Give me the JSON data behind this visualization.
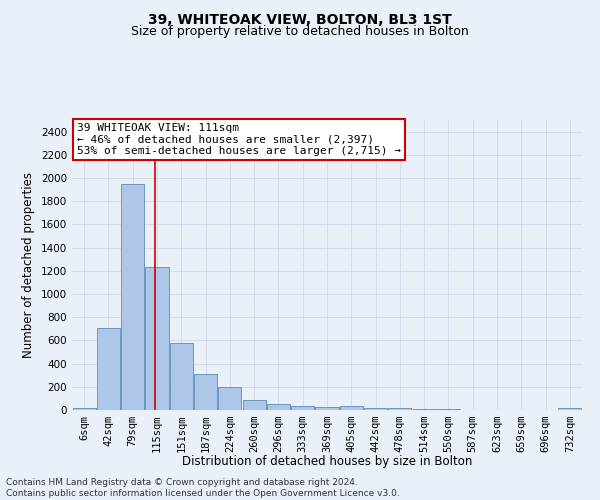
{
  "title": "39, WHITEOAK VIEW, BOLTON, BL3 1ST",
  "subtitle": "Size of property relative to detached houses in Bolton",
  "xlabel": "Distribution of detached houses by size in Bolton",
  "ylabel": "Number of detached properties",
  "categories": [
    "6sqm",
    "42sqm",
    "79sqm",
    "115sqm",
    "151sqm",
    "187sqm",
    "224sqm",
    "260sqm",
    "296sqm",
    "333sqm",
    "369sqm",
    "405sqm",
    "442sqm",
    "478sqm",
    "514sqm",
    "550sqm",
    "587sqm",
    "623sqm",
    "659sqm",
    "696sqm",
    "732sqm"
  ],
  "values": [
    20,
    710,
    1950,
    1230,
    580,
    310,
    200,
    85,
    50,
    35,
    30,
    35,
    20,
    15,
    10,
    5,
    3,
    2,
    2,
    2,
    15
  ],
  "bar_color": "#aec6e8",
  "bar_edge_color": "#5b8db8",
  "grid_color": "#d0d8e8",
  "background_color": "#eaf0f8",
  "annotation_text": "39 WHITEOAK VIEW: 111sqm\n← 46% of detached houses are smaller (2,397)\n53% of semi-detached houses are larger (2,715) →",
  "annotation_box_color": "#ffffff",
  "annotation_box_edge_color": "#cc0000",
  "vline_color": "#cc0000",
  "vline_x": 2.9,
  "ylim": [
    0,
    2500
  ],
  "yticks": [
    0,
    200,
    400,
    600,
    800,
    1000,
    1200,
    1400,
    1600,
    1800,
    2000,
    2200,
    2400
  ],
  "footer_text": "Contains HM Land Registry data © Crown copyright and database right 2024.\nContains public sector information licensed under the Open Government Licence v3.0.",
  "title_fontsize": 10,
  "subtitle_fontsize": 9,
  "axis_label_fontsize": 8.5,
  "tick_fontsize": 7.5,
  "annotation_fontsize": 8,
  "footer_fontsize": 6.5
}
